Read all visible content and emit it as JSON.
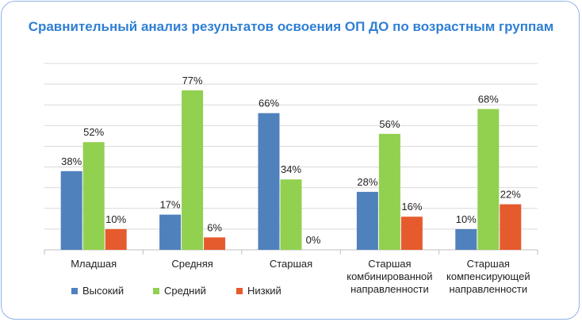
{
  "chart_data": {
    "type": "bar",
    "title": "Сравнительный анализ результатов освоения ОП ДО по возрастным группам",
    "categories": [
      [
        "Младшая"
      ],
      [
        "Средняя"
      ],
      [
        "Старшая"
      ],
      [
        "Старшая",
        "комбинированной",
        "направленности"
      ],
      [
        "Старшая",
        "компенсирующей",
        "направленности"
      ]
    ],
    "series": [
      {
        "name": "Высокий",
        "values": [
          38,
          17,
          66,
          28,
          10
        ],
        "color": "#4f81bd"
      },
      {
        "name": "Средний",
        "values": [
          52,
          77,
          34,
          56,
          68
        ],
        "color": "#92d050"
      },
      {
        "name": "Низкий",
        "values": [
          10,
          6,
          0,
          16,
          22
        ],
        "color": "#e65b2e"
      }
    ],
    "value_suffix": "%",
    "ylim": [
      0,
      90
    ],
    "grid": true,
    "legend_position": "bottom-left"
  }
}
